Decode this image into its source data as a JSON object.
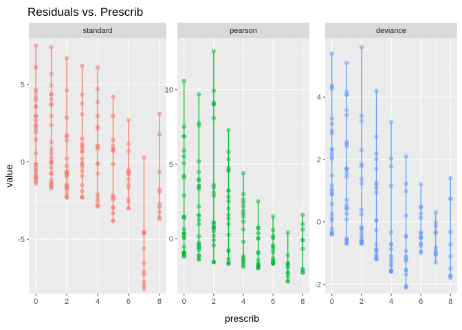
{
  "chart_data": {
    "type": "scatter",
    "title": "Residuals vs. Prescrib",
    "xlabel": "prescrib",
    "ylabel": "value",
    "grid": true,
    "legend": "none",
    "x_ticks": [
      0,
      2,
      4,
      6,
      8
    ],
    "panels": [
      {
        "name": "standard",
        "color": "#F8766D",
        "ylim": [
          -8.5,
          8.0
        ],
        "y_ticks": [
          -5,
          0,
          5
        ],
        "ranges": [
          {
            "x": 0,
            "min": -1.4,
            "max": 7.5
          },
          {
            "x": 1,
            "min": -1.7,
            "max": 7.4
          },
          {
            "x": 2,
            "min": -2.3,
            "max": 6.7
          },
          {
            "x": 3,
            "min": -2.3,
            "max": 6.2
          },
          {
            "x": 4,
            "min": -2.9,
            "max": 6.1
          },
          {
            "x": 5,
            "min": -3.8,
            "max": 4.2
          },
          {
            "x": 6,
            "min": -3.0,
            "max": 2.7
          },
          {
            "x": 7,
            "min": -8.2,
            "max": 0.3
          },
          {
            "x": 8,
            "min": -3.7,
            "max": 3.1
          }
        ]
      },
      {
        "name": "pearson",
        "color": "#00BA38",
        "ylim": [
          -3.7,
          13.5
        ],
        "y_ticks": [
          0,
          5,
          10
        ],
        "ranges": [
          {
            "x": 0,
            "min": -1.2,
            "max": 10.6
          },
          {
            "x": 1,
            "min": -1.4,
            "max": 9.7
          },
          {
            "x": 2,
            "min": -1.6,
            "max": 12.6
          },
          {
            "x": 3,
            "min": -1.7,
            "max": 7.3
          },
          {
            "x": 4,
            "min": -1.9,
            "max": 4.4
          },
          {
            "x": 5,
            "min": -2.0,
            "max": 2.5
          },
          {
            "x": 6,
            "min": -1.7,
            "max": 1.5
          },
          {
            "x": 7,
            "min": -2.9,
            "max": 0.4
          },
          {
            "x": 8,
            "min": -2.3,
            "max": 1.6
          }
        ]
      },
      {
        "name": "deviance",
        "color": "#619CFF",
        "ylim": [
          -2.3,
          5.9
        ],
        "y_ticks": [
          -2,
          0,
          2,
          4
        ],
        "ranges": [
          {
            "x": 0,
            "min": -0.4,
            "max": 5.4
          },
          {
            "x": 1,
            "min": -0.7,
            "max": 5.1
          },
          {
            "x": 2,
            "min": -0.7,
            "max": 5.6
          },
          {
            "x": 3,
            "min": -1.2,
            "max": 4.2
          },
          {
            "x": 4,
            "min": -1.6,
            "max": 3.2
          },
          {
            "x": 5,
            "min": -2.1,
            "max": 2.1
          },
          {
            "x": 6,
            "min": -1.0,
            "max": 1.2
          },
          {
            "x": 7,
            "min": -1.3,
            "max": 0.3
          },
          {
            "x": 8,
            "min": -1.8,
            "max": 1.4
          }
        ]
      }
    ]
  }
}
